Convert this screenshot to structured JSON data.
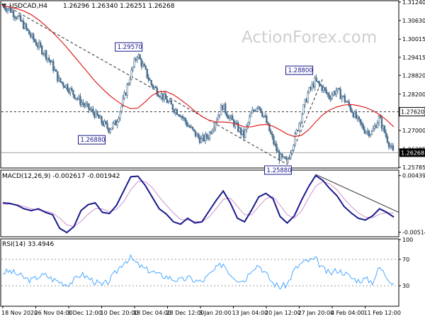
{
  "header": {
    "symbol": "USDCAD,H4",
    "quote": "1.26296 1.26340 1.26251 1.26268"
  },
  "watermark": "ActionForex.com",
  "colors": {
    "candle": "#4a6f8f",
    "ma": "#e02020",
    "macd": "#1a1a8c",
    "signal": "#d090d0",
    "rsi": "#4aa8ff",
    "label_border": "#1a1a8c",
    "label_text": "#1a1a8c",
    "current_bg": "#000000",
    "current_text": "#ffffff",
    "grid_dash": "#333333",
    "trend": "#333333"
  },
  "chart_data": [
    {
      "type": "candlestick",
      "panel": "price",
      "ylim": [
        1.25785,
        1.3126
      ],
      "yticks": [
        "1.31240",
        "1.30630",
        "1.30015",
        "1.29415",
        "1.28820",
        "1.28200",
        "1.27620",
        "1.27000",
        "1.26385",
        "1.25785"
      ],
      "current_price": 1.26268,
      "current_label": "1.26268",
      "resistance": 1.2762,
      "resistance_label": "1.27620",
      "close_path": [
        1.3112,
        1.3102,
        1.3078,
        1.3048,
        1.3012,
        1.2982,
        1.2956,
        1.2918,
        1.2864,
        1.2848,
        1.2822,
        1.2796,
        1.2775,
        1.2756,
        1.2728,
        1.2706,
        1.2725,
        1.2795,
        1.2878,
        1.2952,
        1.2902,
        1.2852,
        1.2826,
        1.2802,
        1.2776,
        1.2756,
        1.2722,
        1.2692,
        1.2668,
        1.2682,
        1.2732,
        1.2782,
        1.2742,
        1.2712,
        1.2682,
        1.2752,
        1.2788,
        1.2738,
        1.2672,
        1.2612,
        1.2595,
        1.2662,
        1.2742,
        1.2822,
        1.2862,
        1.2842,
        1.2812,
        1.2832,
        1.2808,
        1.2775,
        1.2732,
        1.2702,
        1.2692,
        1.2742,
        1.2682,
        1.2626
      ],
      "ma_path": [
        1.3112,
        1.3108,
        1.3102,
        1.3094,
        1.3082,
        1.3066,
        1.3046,
        1.3024,
        1.3,
        1.2974,
        1.2946,
        1.2918,
        1.289,
        1.2862,
        1.2838,
        1.2816,
        1.2798,
        1.2782,
        1.2772,
        1.2774,
        1.2794,
        1.2816,
        1.2828,
        1.2828,
        1.2818,
        1.2802,
        1.2784,
        1.2764,
        1.2746,
        1.2734,
        1.2728,
        1.2728,
        1.2726,
        1.272,
        1.2712,
        1.2712,
        1.2718,
        1.272,
        1.2714,
        1.2702,
        1.2688,
        1.268,
        1.2684,
        1.2702,
        1.2728,
        1.2752,
        1.2768,
        1.2778,
        1.2784,
        1.2786,
        1.2782,
        1.2776,
        1.2766,
        1.2752,
        1.2734,
        1.2712
      ],
      "annotations": [
        {
          "label": "1.29570",
          "value": 1.2957,
          "index": 19
        },
        {
          "label": "1.26880",
          "value": 1.2688,
          "index": 14
        },
        {
          "label": "1.28800",
          "value": 1.288,
          "index": 43
        },
        {
          "label": "1.25880",
          "value": 1.2588,
          "index": 40
        }
      ],
      "xtick_labels": [
        "18 Nov 2020",
        "26 Nov 04:00",
        "3 Dec 12:00",
        "10 Dec 20:00",
        "18 Dec 04:00",
        "28 Dec 12:00",
        "5 Jan 20:00",
        "13 Jan 04:00",
        "20 Jan 12:00",
        "27 Jan 20:00",
        "4 Feb 04:00",
        "11 Feb 12:00"
      ]
    },
    {
      "type": "line",
      "panel": "macd",
      "title": "MACD(12,26,9) -0.002617 -0.001942",
      "ylim": [
        -0.0058,
        0.0052
      ],
      "yticks": [
        "0.004396",
        "-0.005144"
      ],
      "macd": [
        -0.0002,
        -0.0003,
        -0.0006,
        -0.0012,
        -0.0015,
        -0.0012,
        -0.0018,
        -0.0022,
        -0.0045,
        -0.0052,
        -0.0042,
        -0.0015,
        -0.0005,
        -0.0002,
        -0.0018,
        -0.002,
        -0.0006,
        0.0018,
        0.0042,
        0.0043,
        0.0028,
        0.0008,
        -0.0012,
        -0.0021,
        -0.0034,
        -0.0038,
        -0.0028,
        -0.0036,
        -0.0034,
        -0.0016,
        0.0002,
        0.0018,
        -0.0002,
        -0.0028,
        -0.0034,
        -0.0014,
        0.0008,
        0.0014,
        0.0005,
        -0.0025,
        -0.0036,
        -0.0024,
        0.0002,
        0.0025,
        0.0044,
        0.0036,
        0.0022,
        0.001,
        -0.0008,
        -0.0019,
        -0.0028,
        -0.0031,
        -0.0024,
        -0.0012,
        -0.0018,
        -0.0026
      ],
      "signal": [
        -0.0004,
        -0.0004,
        -0.0005,
        -0.0008,
        -0.0012,
        -0.0014,
        -0.0016,
        -0.0019,
        -0.0028,
        -0.0039,
        -0.0042,
        -0.0033,
        -0.0021,
        -0.0012,
        -0.0012,
        -0.0017,
        -0.0013,
        0.0,
        0.002,
        0.0034,
        0.0034,
        0.0024,
        0.0008,
        -0.0006,
        -0.0019,
        -0.003,
        -0.0031,
        -0.0033,
        -0.0034,
        -0.0026,
        -0.0012,
        0.0004,
        0.0006,
        -0.0008,
        -0.0022,
        -0.0022,
        -0.0008,
        0.0005,
        0.0009,
        -0.0006,
        -0.0022,
        -0.0028,
        -0.0016,
        0.0006,
        0.0026,
        0.0034,
        0.003,
        0.002,
        0.0005,
        -0.0008,
        -0.0019,
        -0.0026,
        -0.0027,
        -0.0021,
        -0.0019,
        -0.0019
      ]
    },
    {
      "type": "line",
      "panel": "rsi",
      "title": "RSI(14) 33.4946",
      "ylim": [
        0,
        100
      ],
      "yticks": [
        "100",
        "70",
        "30",
        "0"
      ],
      "levels": [
        70,
        30
      ],
      "rsi": [
        50,
        52,
        48,
        42,
        38,
        44,
        46,
        40,
        36,
        32,
        38,
        48,
        42,
        36,
        30,
        38,
        52,
        66,
        72,
        62,
        55,
        52,
        46,
        44,
        40,
        38,
        42,
        38,
        36,
        46,
        56,
        64,
        48,
        40,
        38,
        56,
        62,
        48,
        34,
        28,
        32,
        54,
        64,
        68,
        70,
        56,
        48,
        54,
        50,
        42,
        38,
        40,
        36,
        58,
        44,
        33.5
      ]
    }
  ]
}
